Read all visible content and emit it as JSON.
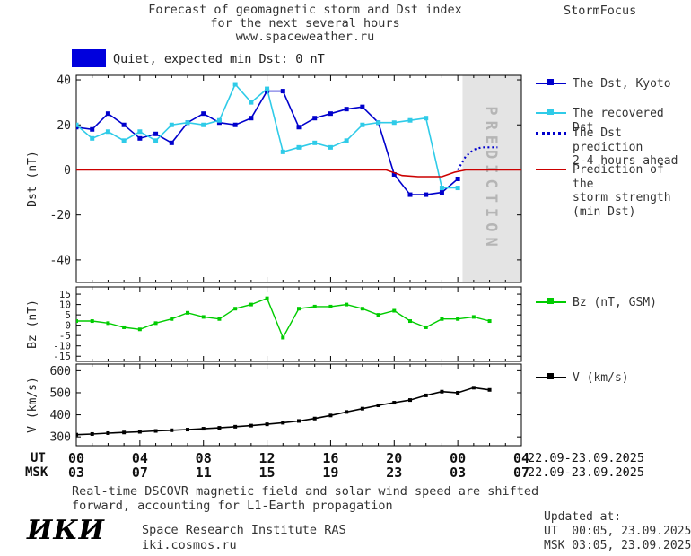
{
  "header": {
    "title_line1": "Forecast of geomagnetic storm and Dst index",
    "title_line2": "for the next several hours",
    "title_line3": "www.spaceweather.ru",
    "brand": "StormFocus"
  },
  "status_banner": {
    "label": "Quiet, expected min Dst: 0 nT",
    "swatch_color": "#0000dd"
  },
  "chart_data": [
    {
      "type": "line",
      "panel": "dst",
      "ylabel": "Dst (nT)",
      "yticks": [
        40,
        20,
        0,
        -20,
        -40
      ],
      "ylim": [
        -50,
        42
      ],
      "xlim": [
        0,
        28
      ],
      "grid": false,
      "legend_position": "right",
      "prediction_band": {
        "x0": 24.3,
        "x1": 28,
        "label": "PREDICTION",
        "color": "#e4e4e4",
        "label_color": "#b5b5b5"
      },
      "series": [
        {
          "name": "The Dst, Kyoto",
          "legend_lines": [
            "The Dst, Kyoto"
          ],
          "color": "#0000cc",
          "marker": "square",
          "marker_size": 5,
          "line_style": "solid",
          "line_width": 1.6,
          "x": [
            0,
            1,
            2,
            3,
            4,
            5,
            6,
            7,
            8,
            9,
            10,
            11,
            12,
            13,
            14,
            15,
            16,
            17,
            18,
            19,
            20,
            21,
            22,
            23,
            24
          ],
          "values": [
            19,
            18,
            25,
            20,
            14,
            16,
            12,
            21,
            25,
            21,
            20,
            23,
            35,
            35,
            19,
            23,
            25,
            27,
            28,
            21,
            -2,
            -11,
            -11,
            -10,
            -4
          ]
        },
        {
          "name": "The recovered Dst",
          "legend_lines": [
            "The recovered Dst"
          ],
          "color": "#2fcbe8",
          "marker": "square",
          "marker_size": 5,
          "line_style": "solid",
          "line_width": 1.6,
          "x": [
            0,
            1,
            2,
            3,
            4,
            5,
            6,
            7,
            8,
            9,
            10,
            11,
            12,
            13,
            14,
            15,
            16,
            17,
            18,
            19,
            20,
            21,
            22,
            23,
            24
          ],
          "values": [
            20,
            14,
            17,
            13,
            17,
            13,
            20,
            21,
            20,
            22,
            38,
            30,
            36,
            8,
            10,
            12,
            10,
            13,
            20,
            21,
            21,
            22,
            23,
            -8,
            -8
          ]
        },
        {
          "name": "The Dst prediction 2-4 hours ahead",
          "legend_lines": [
            "The Dst prediction",
            "2-4 hours ahead"
          ],
          "color": "#0000cc",
          "marker": "none",
          "line_style": "dotted",
          "line_width": 2.2,
          "x": [
            24,
            24.5,
            25,
            25.5,
            26,
            26.5
          ],
          "values": [
            0,
            6,
            9,
            10,
            10,
            10
          ]
        },
        {
          "name": "Prediction of the storm strength (min Dst)",
          "legend_lines": [
            "Prediction of the",
            "storm strength",
            "(min Dst)"
          ],
          "color": "#cc0000",
          "marker": "none",
          "line_style": "solid",
          "line_width": 1.6,
          "x": [
            0,
            19.5,
            20.5,
            21.5,
            23,
            23.8,
            24.5,
            28
          ],
          "values": [
            0,
            0,
            -2.5,
            -3,
            -3,
            -1,
            0,
            0
          ]
        }
      ]
    },
    {
      "type": "line",
      "panel": "bz",
      "ylabel": "Bz (nT)",
      "yticks": [
        15,
        10,
        5,
        0,
        -5,
        -10,
        -15
      ],
      "ylim": [
        -17.5,
        18.5
      ],
      "xlim": [
        0,
        28
      ],
      "grid": false,
      "series": [
        {
          "name": "Bz (nT, GSM)",
          "legend_lines": [
            "Bz (nT, GSM)"
          ],
          "color": "#00cc00",
          "marker": "square",
          "marker_size": 4,
          "line_style": "solid",
          "line_width": 1.4,
          "x": [
            0,
            1,
            2,
            3,
            4,
            5,
            6,
            7,
            8,
            9,
            10,
            11,
            12,
            13,
            14,
            15,
            16,
            17,
            18,
            19,
            20,
            21,
            22,
            23,
            24,
            25,
            26
          ],
          "values": [
            2,
            2,
            1,
            -1,
            -2,
            1,
            3,
            6,
            4,
            3,
            8,
            10,
            13,
            -6,
            8,
            9,
            9,
            10,
            8,
            5,
            7,
            2,
            -1,
            3,
            3,
            4,
            2
          ]
        }
      ]
    },
    {
      "type": "line",
      "panel": "v",
      "ylabel": "V (km/s)",
      "yticks": [
        600,
        500,
        400,
        300
      ],
      "ylim": [
        260,
        630
      ],
      "xlim": [
        0,
        28
      ],
      "grid": false,
      "series": [
        {
          "name": "V (km/s)",
          "legend_lines": [
            "V (km/s)"
          ],
          "color": "#000000",
          "marker": "square",
          "marker_size": 4,
          "line_style": "solid",
          "line_width": 1.6,
          "x": [
            0,
            1,
            2,
            3,
            4,
            5,
            6,
            7,
            8,
            9,
            10,
            11,
            12,
            13,
            14,
            15,
            16,
            17,
            18,
            19,
            20,
            21,
            22,
            23,
            24,
            25,
            26
          ],
          "values": [
            310,
            313,
            317,
            320,
            323,
            327,
            330,
            333,
            337,
            341,
            346,
            351,
            357,
            364,
            372,
            383,
            397,
            413,
            428,
            443,
            455,
            467,
            488,
            505,
            500,
            523,
            513
          ]
        }
      ]
    }
  ],
  "xaxis": {
    "ut_label": "UT",
    "msk_label": "MSK",
    "tick_hours": [
      0,
      4,
      8,
      12,
      16,
      20,
      24,
      28
    ],
    "ut_ticks": [
      "00",
      "04",
      "08",
      "12",
      "16",
      "20",
      "00",
      "04"
    ],
    "msk_ticks": [
      "03",
      "07",
      "11",
      "15",
      "19",
      "23",
      "03",
      "07"
    ],
    "ut_date": "22.09-23.09.2025",
    "msk_date": "22.09-23.09.2025"
  },
  "footer": {
    "note_line1": "Real-time DSCOVR magnetic field and solar wind speed are shifted",
    "note_line2": "forward, accounting for L1-Earth propagation",
    "logo": "ИКИ",
    "org_name": "Space Research Institute RAS",
    "org_site": "iki.cosmos.ru",
    "updated_label": "Updated at:",
    "updated_ut": "UT  00:05, 23.09.2025",
    "updated_msk": "MSK 03:05, 23.09.2025"
  }
}
